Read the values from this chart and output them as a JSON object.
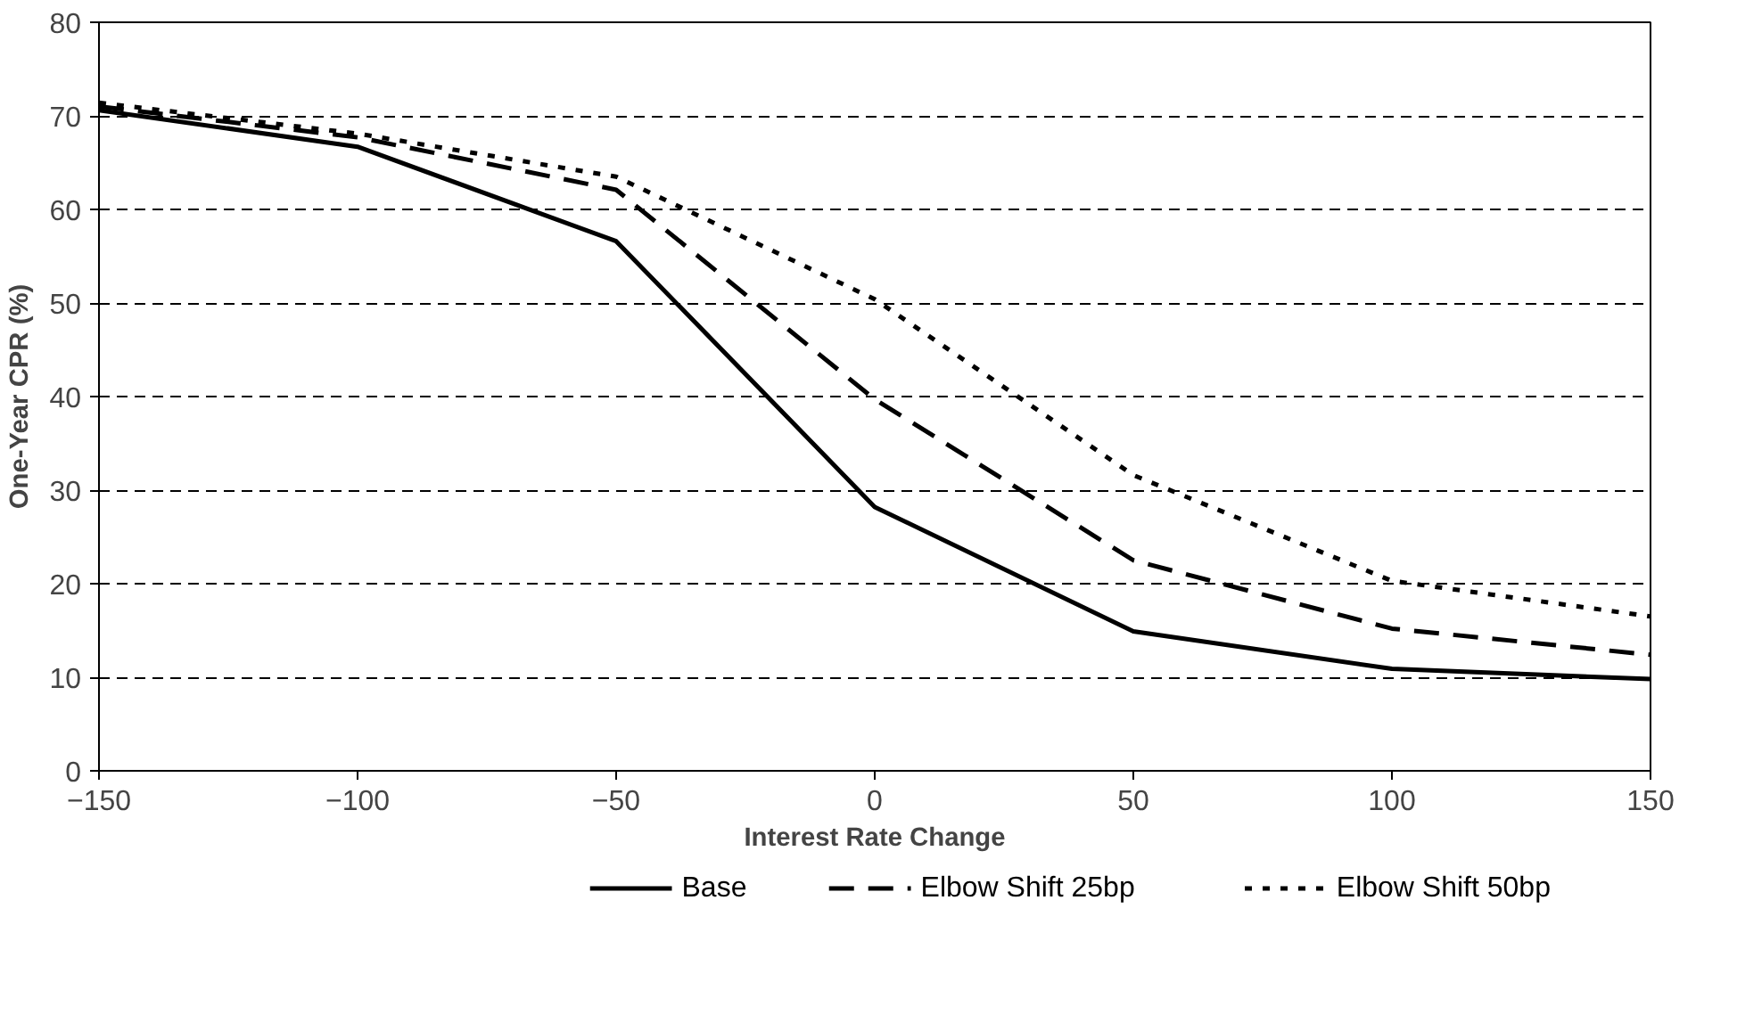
{
  "chart_data": {
    "type": "line",
    "xlabel": "Interest Rate Change",
    "ylabel": "One-Year CPR (%)",
    "x": [
      -150,
      -100,
      -50,
      0,
      50,
      100,
      150
    ],
    "series": [
      {
        "name": "Base",
        "color": "#000000",
        "line_style": "solid",
        "values": [
          70.6,
          66.7,
          56.6,
          28.2,
          14.9,
          10.9,
          9.8
        ]
      },
      {
        "name": "Elbow Shift 25bp",
        "color": "#000000",
        "line_style": "dashed",
        "values": [
          71.0,
          67.7,
          62.1,
          39.7,
          22.5,
          15.2,
          12.4
        ]
      },
      {
        "name": "Elbow Shift 50bp",
        "color": "#000000",
        "line_style": "dotted",
        "values": [
          71.4,
          68.1,
          63.5,
          50.4,
          31.6,
          20.3,
          16.5
        ]
      }
    ],
    "xlim": [
      -150,
      150
    ],
    "ylim": [
      0,
      80
    ],
    "xticks": [
      -150,
      -100,
      -50,
      0,
      50,
      100,
      150
    ],
    "yticks": [
      0,
      10,
      20,
      30,
      40,
      50,
      60,
      70,
      80
    ],
    "grid": "y",
    "legend": "bottom",
    "marker": "none"
  }
}
